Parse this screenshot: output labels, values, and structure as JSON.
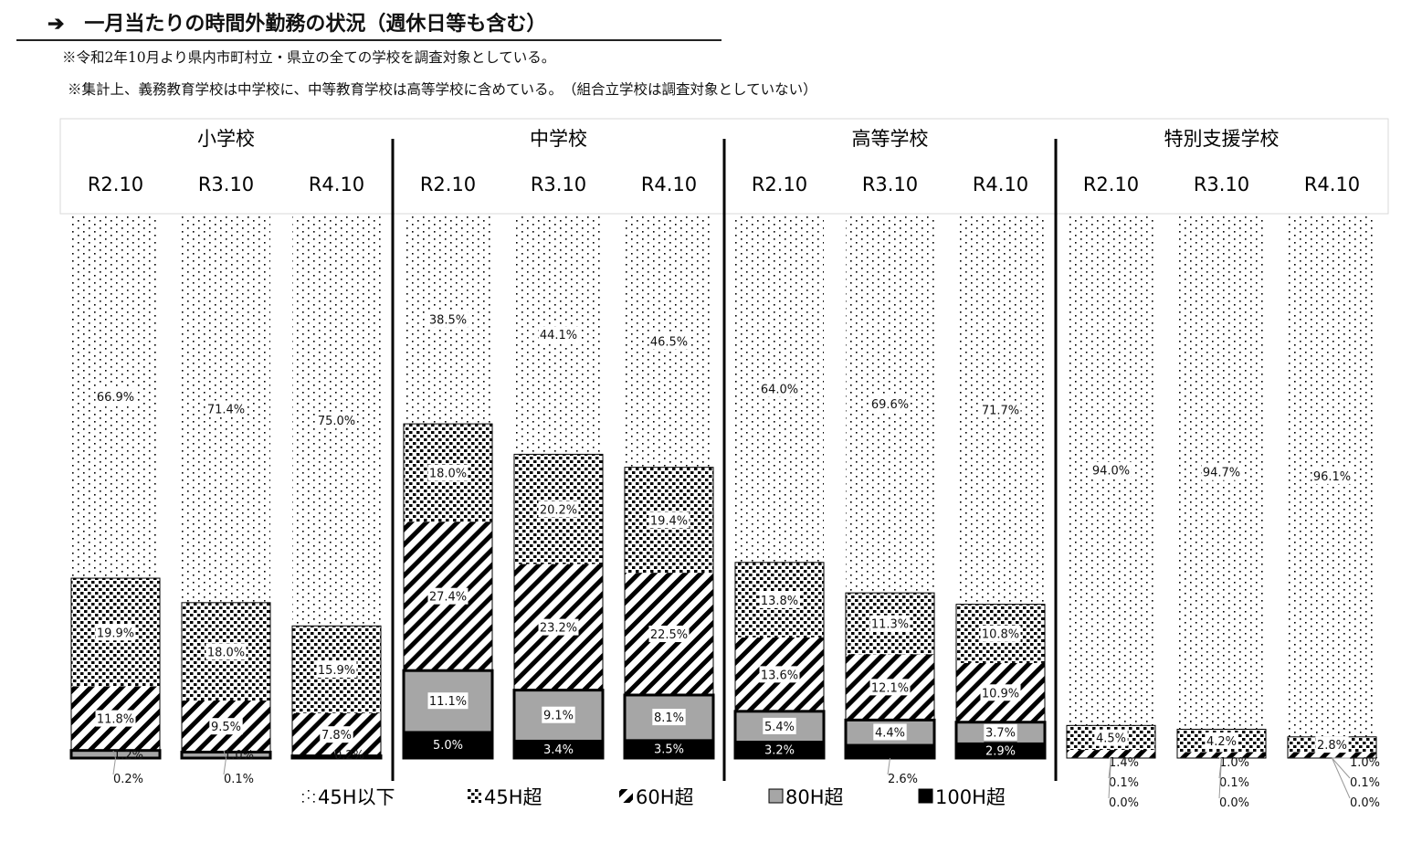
{
  "title": "➔　一月当たりの時間外勤務の状況（週休日等も含む）",
  "notes": [
    "※令和2年10月より県内市町村立・県立の全ての学校を調査対象としている。",
    "※集計上、義務教育学校は中学校に、中等教育学校は高等学校に含めている。　（組合立学校は調査対象としていない）"
  ],
  "chart_data": {
    "type": "bar",
    "stacked": true,
    "normalized": true,
    "unit": "%",
    "ylim": [
      0,
      100
    ],
    "groups": [
      "小学校",
      "中学校",
      "高等学校",
      "特別支援学校"
    ],
    "categories": [
      "R2.10",
      "R3.10",
      "R4.10"
    ],
    "series": [
      {
        "name": "45H以下",
        "pattern": "sparse-dots"
      },
      {
        "name": "45H超",
        "pattern": "dense-squares"
      },
      {
        "name": "60H超",
        "pattern": "diagonal-stripes"
      },
      {
        "name": "80H超",
        "color": "#a6a6a6"
      },
      {
        "name": "100H超",
        "color": "#000000"
      }
    ],
    "values": [
      [
        [
          66.9,
          19.9,
          11.8,
          1.2,
          0.2
        ],
        [
          71.4,
          18.0,
          9.5,
          1.0,
          0.1
        ],
        [
          75.0,
          15.9,
          7.8,
          0.2,
          0.2
        ]
      ],
      [
        [
          38.5,
          18.0,
          27.4,
          11.1,
          5.0
        ],
        [
          44.1,
          20.2,
          23.2,
          9.1,
          3.4
        ],
        [
          46.5,
          19.4,
          22.5,
          8.1,
          3.5
        ]
      ],
      [
        [
          64.0,
          13.8,
          13.6,
          5.4,
          3.2
        ],
        [
          69.6,
          11.3,
          12.1,
          4.4,
          2.6
        ],
        [
          71.7,
          10.8,
          10.9,
          3.7,
          2.9
        ]
      ],
      [
        [
          94.0,
          4.5,
          1.4,
          0.1,
          0.0
        ],
        [
          94.7,
          4.2,
          1.0,
          0.1,
          0.0
        ],
        [
          96.1,
          2.8,
          1.0,
          0.1,
          0.0
        ]
      ]
    ],
    "labels": [
      [
        [
          "66.9%",
          "19.9%",
          "11.8%",
          "1.2%",
          "0.2%"
        ],
        [
          "71.4%",
          "18.0%",
          "9.5%",
          "1.0%",
          "0.1%"
        ],
        [
          "75.0%",
          "15.9%",
          "7.8%",
          "0.2%",
          ""
        ]
      ],
      [
        [
          "38.5%",
          "18.0%",
          "27.4%",
          "11.1%",
          "5.0%"
        ],
        [
          "44.1%",
          "20.2%",
          "23.2%",
          "9.1%",
          "3.4%"
        ],
        [
          "46.5%",
          "19.4%",
          "22.5%",
          "8.1%",
          "3.5%"
        ]
      ],
      [
        [
          "64.0%",
          "13.8%",
          "13.6%",
          "5.4%",
          "3.2%"
        ],
        [
          "69.6%",
          "11.3%",
          "12.1%",
          "4.4%",
          "2.6%"
        ],
        [
          "71.7%",
          "10.8%",
          "10.9%",
          "3.7%",
          "2.9%"
        ]
      ],
      [
        [
          "94.0%",
          "4.5%",
          "1.4%",
          "0.1%",
          "0.0%"
        ],
        [
          "94.7%",
          "4.2%",
          "1.0%",
          "0.1%",
          "0.0%"
        ],
        [
          "96.1%",
          "2.8%",
          "1.0%",
          "0.1%",
          "0.0%"
        ]
      ]
    ],
    "legend": {
      "placement": "bottom"
    }
  }
}
